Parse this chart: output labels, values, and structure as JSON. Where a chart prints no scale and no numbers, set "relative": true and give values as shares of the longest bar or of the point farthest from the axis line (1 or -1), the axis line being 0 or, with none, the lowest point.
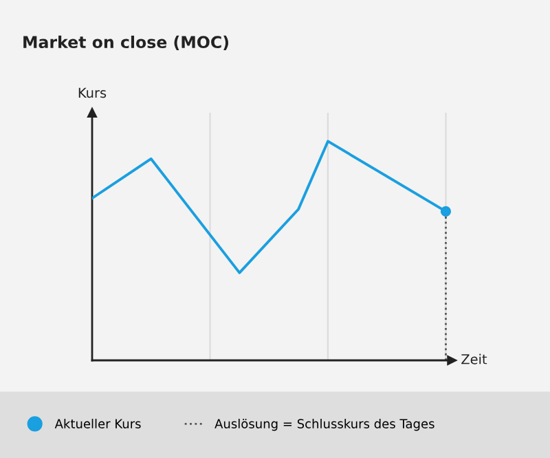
{
  "chart_data": {
    "type": "line",
    "title": "Market on close (MOC)",
    "xlabel": "Zeit",
    "ylabel": "Kurs",
    "relative": true,
    "categories": [
      null,
      null,
      null,
      null,
      null,
      null,
      null,
      null,
      null,
      null,
      null,
      null,
      null
    ],
    "grid": "x",
    "legend": "bottom",
    "line_style": "solid",
    "series": [
      {
        "name": "Aktueller Kurs",
        "color": "#1a9fe0",
        "values": [
          0.74,
          null,
          0.92,
          null,
          null,
          0.4,
          null,
          0.69,
          1,
          null,
          null,
          null,
          0.68
        ]
      }
    ],
    "ref_lines": [
      {
        "axis": "x",
        "label": "Auslösung = Schlusskurs des Tages",
        "color": "#555555",
        "line_style": "dotted"
      }
    ]
  }
}
